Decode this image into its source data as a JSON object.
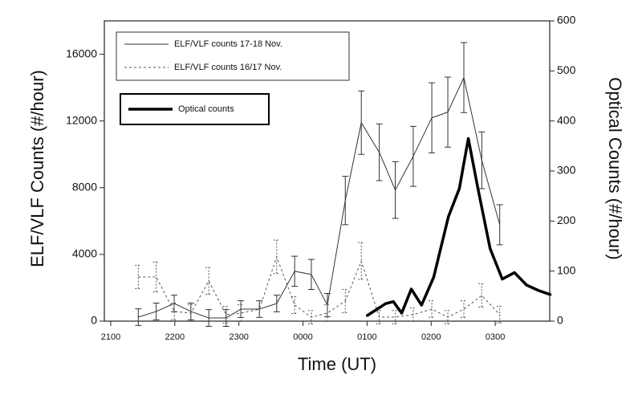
{
  "chart_data": {
    "type": "line",
    "xlabel": "Time (UT)",
    "ylabel": "ELF/VLF Counts (#/hour)",
    "y2label": "Optical Counts (#/hour)",
    "xlim": [
      20.9,
      27.85
    ],
    "xticks": [
      {
        "value": 21,
        "label": "2100"
      },
      {
        "value": 22,
        "label": "2200"
      },
      {
        "value": 23,
        "label": "2300"
      },
      {
        "value": 24,
        "label": "0000"
      },
      {
        "value": 25,
        "label": "0100"
      },
      {
        "value": 26,
        "label": "0200"
      },
      {
        "value": 27,
        "label": "0300"
      }
    ],
    "ylim": [
      0,
      18000
    ],
    "yticks": [
      0,
      4000,
      8000,
      12000,
      16000
    ],
    "y2lim": [
      0,
      600
    ],
    "y2ticks": [
      0,
      100,
      200,
      300,
      400,
      500,
      600
    ],
    "series": [
      {
        "name": "ELF/VLF counts 17-18 Nov.",
        "color": "#333333",
        "width": 1,
        "dash": false,
        "x": [
          21.43,
          21.71,
          21.99,
          22.25,
          22.53,
          22.8,
          23.03,
          23.32,
          23.59,
          23.87,
          24.13,
          24.38,
          24.66,
          24.91,
          25.19,
          25.44,
          25.72,
          26.01,
          26.26,
          26.51,
          26.79,
          27.07
        ],
        "values": [
          240,
          580,
          1060,
          580,
          190,
          190,
          720,
          720,
          1060,
          2990,
          2800,
          960,
          7230,
          11900,
          10120,
          7860,
          9880,
          12190,
          12530,
          14600,
          9640,
          5780
        ],
        "errors": [
          500,
          500,
          500,
          500,
          500,
          500,
          500,
          500,
          500,
          900,
          900,
          700,
          1450,
          1900,
          1700,
          1700,
          1800,
          2100,
          2100,
          2100,
          1700,
          1200
        ]
      },
      {
        "name": "ELF/VLF counts 16/17 Nov.",
        "color": "#555555",
        "width": 1,
        "dash": true,
        "x": [
          21.43,
          21.71,
          21.99,
          22.25,
          22.53,
          22.8,
          23.03,
          23.32,
          23.59,
          23.87,
          24.13,
          24.38,
          24.66,
          24.91,
          25.19,
          25.44,
          25.72,
          26.01,
          26.26,
          26.51,
          26.79,
          27.07
        ],
        "values": [
          2650,
          2650,
          580,
          480,
          2410,
          390,
          480,
          720,
          3860,
          960,
          240,
          480,
          1200,
          3610,
          240,
          240,
          390,
          720,
          240,
          720,
          1540,
          390
        ],
        "errors": [
          700,
          900,
          500,
          500,
          800,
          500,
          500,
          500,
          1000,
          500,
          400,
          500,
          700,
          1100,
          400,
          400,
          400,
          500,
          400,
          500,
          700,
          500
        ]
      },
      {
        "name": "Optical counts",
        "color": "#000000",
        "width": 3.5,
        "dash": false,
        "axis": "y2",
        "x": [
          25.0,
          25.29,
          25.41,
          25.54,
          25.69,
          25.85,
          26.04,
          26.27,
          26.44,
          26.58,
          26.73,
          26.92,
          27.11,
          27.3,
          27.49,
          27.68,
          27.86
        ],
        "values": [
          11,
          35,
          39,
          16,
          64,
          32,
          88,
          209,
          265,
          365,
          265,
          145,
          84,
          97,
          72,
          61,
          53
        ]
      }
    ]
  }
}
